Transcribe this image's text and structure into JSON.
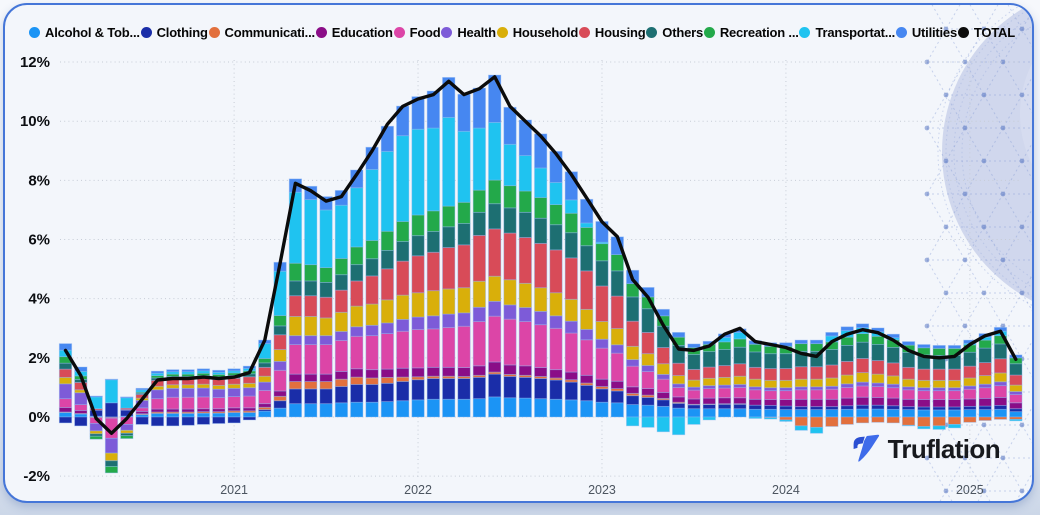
{
  "branding": {
    "logo_text": "Truflation",
    "logo_icon": "truflation-mark"
  },
  "chart_data": {
    "type": "bar",
    "subtype": "stacked-column-with-total-line",
    "title": "",
    "grid": true,
    "legend_position": "top",
    "y_axis": {
      "unit": "%",
      "min": -2,
      "max": 12,
      "tick_labels": [
        "12%",
        "10%",
        "8%",
        "6%",
        "4%",
        "2%",
        "0%",
        "-2%"
      ],
      "tick_values": [
        12,
        10,
        8,
        6,
        4,
        2,
        0,
        -2
      ]
    },
    "x_axis": {
      "tick_labels": [
        "2021",
        "2022",
        "2023",
        "2024",
        "2025"
      ],
      "tick_bar_index": [
        11,
        23,
        35,
        47,
        59
      ]
    },
    "bar_count": 63,
    "series": [
      {
        "name": "Alcohol & Tob...",
        "color": "#1b94f5",
        "values": [
          0.15,
          0.1,
          0.03,
          0.0,
          0.03,
          0.08,
          0.12,
          0.12,
          0.12,
          0.13,
          0.13,
          0.15,
          0.15,
          0.2,
          0.3,
          0.45,
          0.45,
          0.45,
          0.48,
          0.5,
          0.5,
          0.52,
          0.55,
          0.58,
          0.6,
          0.6,
          0.6,
          0.62,
          0.68,
          0.65,
          0.64,
          0.62,
          0.6,
          0.58,
          0.55,
          0.5,
          0.48,
          0.42,
          0.4,
          0.36,
          0.3,
          0.28,
          0.28,
          0.28,
          0.28,
          0.26,
          0.26,
          0.25,
          0.25,
          0.25,
          0.25,
          0.26,
          0.27,
          0.27,
          0.26,
          0.25,
          0.24,
          0.24,
          0.24,
          0.25,
          0.25,
          0.26,
          0.18
        ]
      },
      {
        "name": "Clothing",
        "color": "#1a2da8",
        "values": [
          -0.2,
          -0.3,
          0.2,
          0.48,
          0.2,
          -0.25,
          -0.3,
          -0.3,
          -0.28,
          -0.25,
          -0.22,
          -0.2,
          -0.1,
          0.05,
          0.25,
          0.5,
          0.5,
          0.5,
          0.55,
          0.6,
          0.6,
          0.62,
          0.65,
          0.68,
          0.7,
          0.7,
          0.7,
          0.72,
          0.77,
          0.72,
          0.7,
          0.68,
          0.65,
          0.6,
          0.52,
          0.45,
          0.4,
          0.3,
          0.26,
          0.22,
          0.16,
          0.13,
          0.14,
          0.15,
          0.15,
          0.14,
          0.13,
          0.12,
          0.1,
          0.1,
          0.1,
          0.12,
          0.13,
          0.13,
          0.12,
          0.1,
          0.1,
          0.1,
          0.1,
          0.11,
          0.12,
          0.13,
          0.1
        ]
      },
      {
        "name": "Communicati...",
        "color": "#e2703d",
        "values": [
          0.02,
          0.02,
          -0.02,
          -0.02,
          0.0,
          0.03,
          0.05,
          0.05,
          0.05,
          0.05,
          0.05,
          0.06,
          0.06,
          0.08,
          0.15,
          0.25,
          0.25,
          0.25,
          0.25,
          0.25,
          0.22,
          0.2,
          0.15,
          0.1,
          0.08,
          0.08,
          0.07,
          0.07,
          0.07,
          0.07,
          0.07,
          0.07,
          0.07,
          0.08,
          0.08,
          0.08,
          0.08,
          0.08,
          0.08,
          0.05,
          0.04,
          0.02,
          0.02,
          0.02,
          0.02,
          0.0,
          -0.02,
          -0.1,
          -0.3,
          -0.35,
          -0.32,
          -0.25,
          -0.2,
          -0.18,
          -0.2,
          -0.28,
          -0.32,
          -0.3,
          -0.25,
          -0.18,
          -0.12,
          -0.08,
          -0.08
        ]
      },
      {
        "name": "Education",
        "color": "#8a0d87",
        "values": [
          0.15,
          0.1,
          0.0,
          -0.02,
          0.02,
          0.08,
          0.1,
          0.1,
          0.1,
          0.1,
          0.1,
          0.1,
          0.1,
          0.12,
          0.18,
          0.25,
          0.25,
          0.25,
          0.26,
          0.28,
          0.28,
          0.28,
          0.3,
          0.3,
          0.3,
          0.3,
          0.3,
          0.32,
          0.34,
          0.32,
          0.32,
          0.3,
          0.28,
          0.26,
          0.26,
          0.25,
          0.25,
          0.22,
          0.22,
          0.2,
          0.18,
          0.18,
          0.2,
          0.2,
          0.2,
          0.2,
          0.2,
          0.22,
          0.25,
          0.25,
          0.25,
          0.26,
          0.27,
          0.26,
          0.26,
          0.25,
          0.25,
          0.25,
          0.25,
          0.25,
          0.26,
          0.27,
          0.2
        ]
      },
      {
        "name": "Food",
        "color": "#dc45a7",
        "values": [
          0.3,
          0.2,
          -0.2,
          -0.68,
          -0.25,
          0.12,
          0.35,
          0.4,
          0.4,
          0.4,
          0.38,
          0.38,
          0.4,
          0.45,
          0.7,
          1.0,
          1.0,
          1.0,
          1.05,
          1.1,
          1.15,
          1.2,
          1.25,
          1.3,
          1.3,
          1.35,
          1.4,
          1.5,
          1.55,
          1.55,
          1.5,
          1.45,
          1.4,
          1.32,
          1.2,
          1.05,
          0.95,
          0.7,
          0.58,
          0.45,
          0.32,
          0.3,
          0.32,
          0.33,
          0.35,
          0.32,
          0.3,
          0.3,
          0.32,
          0.32,
          0.34,
          0.36,
          0.38,
          0.37,
          0.35,
          0.32,
          0.3,
          0.3,
          0.3,
          0.33,
          0.36,
          0.4,
          0.28
        ]
      },
      {
        "name": "Health",
        "color": "#7d5bd8",
        "values": [
          0.5,
          0.4,
          -0.25,
          -0.5,
          -0.2,
          0.25,
          0.3,
          0.3,
          0.3,
          0.3,
          0.28,
          0.28,
          0.28,
          0.28,
          0.3,
          0.3,
          0.3,
          0.3,
          0.3,
          0.32,
          0.35,
          0.36,
          0.4,
          0.42,
          0.44,
          0.45,
          0.45,
          0.48,
          0.5,
          0.48,
          0.47,
          0.45,
          0.42,
          0.4,
          0.35,
          0.3,
          0.28,
          0.22,
          0.2,
          0.16,
          0.12,
          0.1,
          0.1,
          0.1,
          0.1,
          0.1,
          0.1,
          0.1,
          0.1,
          0.1,
          0.1,
          0.12,
          0.13,
          0.12,
          0.12,
          0.1,
          0.1,
          0.1,
          0.1,
          0.11,
          0.12,
          0.13,
          0.1
        ]
      },
      {
        "name": "Household",
        "color": "#d9af0a",
        "values": [
          0.22,
          0.1,
          -0.1,
          -0.26,
          -0.1,
          0.08,
          0.12,
          0.12,
          0.12,
          0.13,
          0.13,
          0.14,
          0.15,
          0.2,
          0.4,
          0.65,
          0.65,
          0.6,
          0.65,
          0.7,
          0.72,
          0.78,
          0.82,
          0.82,
          0.85,
          0.85,
          0.85,
          0.88,
          0.85,
          0.85,
          0.82,
          0.8,
          0.78,
          0.74,
          0.68,
          0.6,
          0.55,
          0.45,
          0.4,
          0.36,
          0.28,
          0.24,
          0.25,
          0.26,
          0.28,
          0.26,
          0.25,
          0.25,
          0.26,
          0.26,
          0.28,
          0.3,
          0.32,
          0.3,
          0.28,
          0.26,
          0.25,
          0.25,
          0.25,
          0.27,
          0.29,
          0.3,
          0.22
        ]
      },
      {
        "name": "Housing",
        "color": "#d84b58",
        "values": [
          0.28,
          0.25,
          0.05,
          0.0,
          0.05,
          0.12,
          0.2,
          0.2,
          0.2,
          0.2,
          0.2,
          0.2,
          0.22,
          0.3,
          0.5,
          0.7,
          0.7,
          0.7,
          0.75,
          0.85,
          0.95,
          1.05,
          1.15,
          1.25,
          1.3,
          1.4,
          1.45,
          1.55,
          1.6,
          1.58,
          1.55,
          1.5,
          1.45,
          1.4,
          1.3,
          1.2,
          1.1,
          0.85,
          0.72,
          0.55,
          0.42,
          0.36,
          0.38,
          0.4,
          0.42,
          0.4,
          0.4,
          0.4,
          0.42,
          0.42,
          0.44,
          0.46,
          0.48,
          0.46,
          0.44,
          0.4,
          0.38,
          0.38,
          0.38,
          0.4,
          0.44,
          0.48,
          0.34
        ]
      },
      {
        "name": "Others",
        "color": "#1d6f72",
        "values": [
          0.2,
          0.1,
          -0.08,
          -0.19,
          -0.08,
          0.04,
          0.08,
          0.08,
          0.08,
          0.09,
          0.09,
          0.1,
          0.1,
          0.15,
          0.3,
          0.5,
          0.5,
          0.5,
          0.52,
          0.55,
          0.58,
          0.62,
          0.66,
          0.68,
          0.7,
          0.7,
          0.72,
          0.78,
          0.85,
          0.85,
          0.85,
          0.85,
          0.85,
          0.85,
          0.85,
          0.85,
          0.85,
          0.82,
          0.8,
          0.72,
          0.6,
          0.5,
          0.52,
          0.54,
          0.56,
          0.52,
          0.5,
          0.5,
          0.52,
          0.52,
          0.52,
          0.54,
          0.55,
          0.54,
          0.52,
          0.5,
          0.48,
          0.46,
          0.46,
          0.47,
          0.49,
          0.5,
          0.38
        ]
      },
      {
        "name": "Recreation ...",
        "color": "#23a94a",
        "values": [
          0.22,
          0.12,
          -0.1,
          -0.22,
          -0.1,
          0.04,
          0.08,
          0.08,
          0.08,
          0.08,
          0.08,
          0.08,
          0.1,
          0.15,
          0.35,
          0.6,
          0.55,
          0.5,
          0.55,
          0.6,
          0.62,
          0.65,
          0.68,
          0.7,
          0.7,
          0.7,
          0.72,
          0.75,
          0.8,
          0.75,
          0.72,
          0.7,
          0.68,
          0.66,
          0.62,
          0.58,
          0.55,
          0.45,
          0.4,
          0.35,
          0.28,
          0.24,
          0.25,
          0.26,
          0.28,
          0.26,
          0.25,
          0.25,
          0.26,
          0.26,
          0.26,
          0.28,
          0.29,
          0.28,
          0.26,
          0.25,
          0.24,
          0.24,
          0.24,
          0.25,
          0.27,
          0.28,
          0.2
        ]
      },
      {
        "name": "Transportat...",
        "color": "#1fc3f0",
        "values": [
          0.22,
          0.15,
          0.4,
          0.78,
          0.35,
          0.08,
          0.08,
          0.08,
          0.08,
          0.08,
          0.07,
          0.07,
          0.08,
          0.5,
          1.5,
          2.4,
          2.2,
          1.95,
          1.8,
          2.0,
          2.4,
          2.7,
          2.9,
          2.9,
          2.8,
          3.0,
          2.4,
          2.1,
          1.95,
          1.4,
          1.2,
          1.0,
          0.75,
          0.45,
          0.15,
          0.05,
          0.0,
          -0.3,
          -0.35,
          -0.5,
          -0.6,
          -0.25,
          -0.1,
          0.15,
          0.22,
          -0.05,
          -0.05,
          -0.05,
          -0.15,
          -0.2,
          0.2,
          0.22,
          0.2,
          0.15,
          0.07,
          -0.02,
          -0.08,
          -0.12,
          -0.12,
          0.05,
          0.1,
          0.15,
          -0.05
        ]
      },
      {
        "name": "Utilities",
        "color": "#4687f1",
        "values": [
          0.22,
          0.15,
          0.03,
          0.02,
          0.03,
          0.05,
          0.07,
          0.07,
          0.07,
          0.07,
          0.07,
          0.07,
          0.08,
          0.12,
          0.3,
          0.45,
          0.45,
          0.45,
          0.5,
          0.6,
          0.75,
          0.85,
          1.0,
          1.1,
          1.25,
          1.35,
          1.25,
          1.35,
          1.6,
          1.25,
          1.2,
          1.15,
          1.05,
          0.95,
          0.8,
          0.7,
          0.6,
          0.45,
          0.32,
          0.22,
          0.16,
          0.12,
          0.1,
          0.12,
          0.12,
          0.12,
          0.12,
          0.12,
          0.12,
          0.12,
          0.12,
          0.13,
          0.13,
          0.13,
          0.12,
          0.12,
          0.11,
          0.1,
          0.1,
          0.11,
          0.12,
          0.13,
          0.1
        ]
      }
    ],
    "total_line": {
      "name": "TOTAL",
      "color": "#0b0b0b",
      "values": [
        2.25,
        1.4,
        -0.05,
        -0.55,
        -0.05,
        0.6,
        1.25,
        1.3,
        1.3,
        1.35,
        1.3,
        1.35,
        1.5,
        2.6,
        5.2,
        7.9,
        7.65,
        7.3,
        7.45,
        8.2,
        9.0,
        9.9,
        10.5,
        10.75,
        10.9,
        11.35,
        10.9,
        11.1,
        11.5,
        10.5,
        10.0,
        9.5,
        8.9,
        8.2,
        7.4,
        6.6,
        6.1,
        4.65,
        4.05,
        3.1,
        2.3,
        2.25,
        2.4,
        2.8,
        3.0,
        2.55,
        2.45,
        2.35,
        2.15,
        2.05,
        2.55,
        2.8,
        2.95,
        2.85,
        2.6,
        2.25,
        2.05,
        2.0,
        2.05,
        2.45,
        2.75,
        2.9,
        1.95
      ]
    }
  }
}
